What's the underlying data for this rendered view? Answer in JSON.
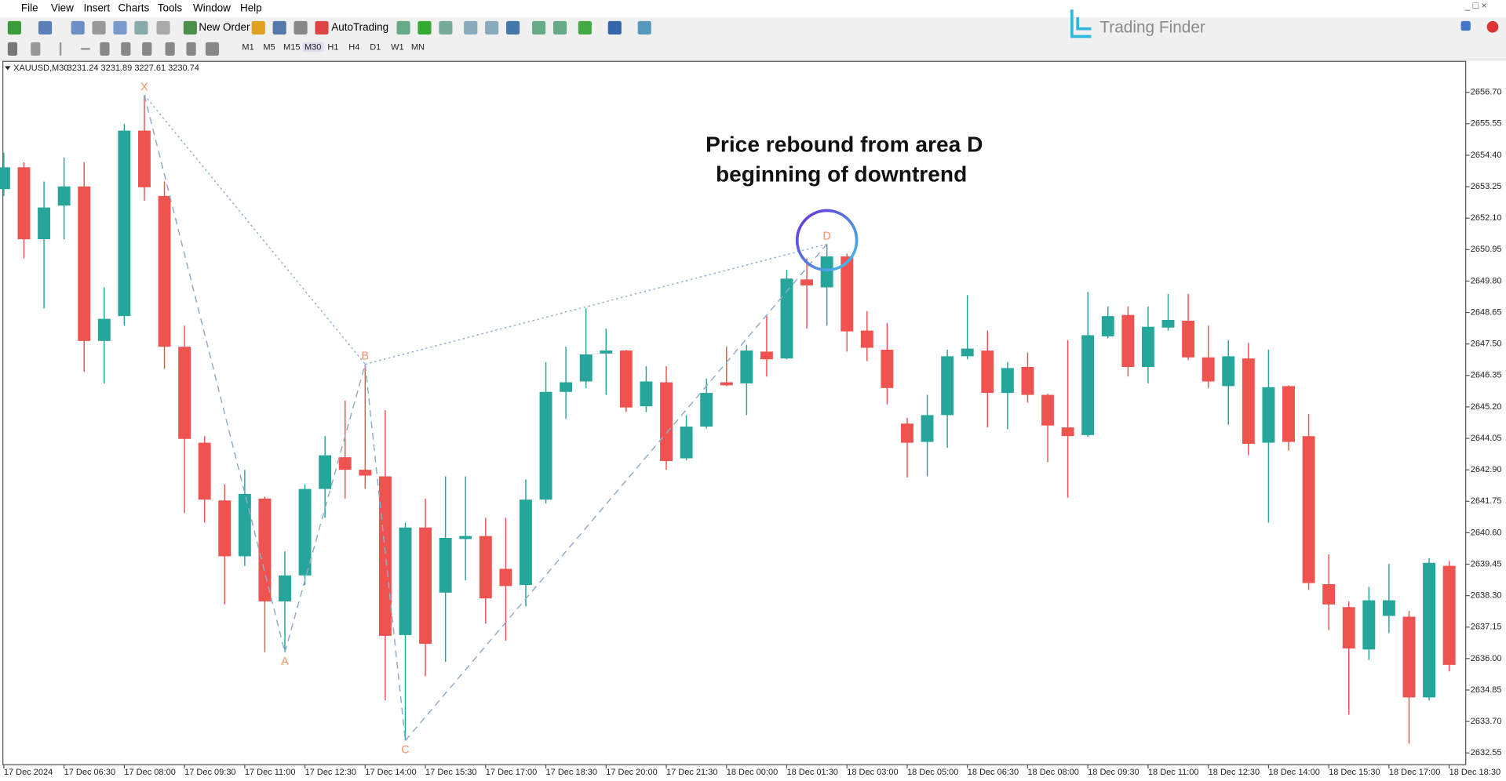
{
  "menu": [
    "File",
    "View",
    "Insert",
    "Charts",
    "Tools",
    "Window",
    "Help"
  ],
  "toolbar": {
    "new_order": "New Order",
    "autotrading": "AutoTrading",
    "timeframes": [
      "M1",
      "M5",
      "M15",
      "M30",
      "H1",
      "H4",
      "D1",
      "W1",
      "MN"
    ]
  },
  "logo": "Trading Finder",
  "chart_data": {
    "type": "candlestick",
    "symbol": "XAUUSD,M30",
    "header_prices": "3231.24 3231.89 3227.61 3230.74",
    "annotation": [
      "Price rebound from area D",
      "beginning of downtrend"
    ],
    "up_color": "#26a69a",
    "down_color": "#ef5350",
    "categories": [
      "17 Dec 2024",
      null,
      null,
      "17 Dec 06:30",
      null,
      null,
      "17 Dec 08:00",
      null,
      null,
      "17 Dec 09:30",
      null,
      null,
      "17 Dec 11:00",
      null,
      null,
      "17 Dec 12:30",
      null,
      null,
      "17 Dec 14:00",
      null,
      null,
      "17 Dec 15:30",
      null,
      null,
      "17 Dec 17:00",
      null,
      null,
      "17 Dec 18:30",
      null,
      null,
      "17 Dec 20:00",
      null,
      null,
      "17 Dec 21:30",
      null,
      null,
      "18 Dec 00:00",
      null,
      null,
      "18 Dec 01:30",
      null,
      null,
      "18 Dec 03:00",
      null,
      null,
      "18 Dec 05:00",
      null,
      null,
      "18 Dec 06:30",
      null,
      null,
      "18 Dec 08:00",
      null,
      null,
      "18 Dec 09:30",
      null,
      null,
      "18 Dec 11:00",
      null,
      null,
      "18 Dec 12:30",
      null,
      null,
      "18 Dec 14:00",
      null,
      null,
      "18 Dec 15:30",
      null,
      null,
      "18 Dec 17:00",
      null,
      null,
      "18 Dec 18:30"
    ],
    "open": [
      2653.16,
      2653.96,
      2651.33,
      2652.56,
      2653.26,
      2647.61,
      2648.52,
      2655.3,
      2652.91,
      2647.4,
      2643.89,
      2641.78,
      2639.74,
      2641.85,
      2638.09,
      2639.04,
      2642.2,
      2643.36,
      2642.9,
      2642.66,
      2636.86,
      2640.79,
      2638.41,
      2640.37,
      2640.48,
      2639.28,
      2638.69,
      2641.81,
      2645.75,
      2646.13,
      2647.15,
      2647.26,
      2645.22,
      2646.1,
      2643.32,
      2644.48,
      2646.1,
      2646.06,
      2647.22,
      2646.97,
      2649.86,
      2649.57,
      2650.7,
      2647.99,
      2647.29,
      2644.59,
      2643.92,
      2644.9,
      2647.05,
      2647.26,
      2645.71,
      2646.66,
      2645.64,
      2644.45,
      2644.17,
      2647.78,
      2648.56,
      2646.66,
      2648.1,
      2648.35,
      2647.01,
      2645.96,
      2646.97,
      2643.89,
      2645.96,
      2644.13,
      2638.72,
      2637.88,
      2636.33,
      2637.56,
      2637.53,
      2634.58,
      2639.39
    ],
    "high": [
      2654.49,
      2654.14,
      2653.44,
      2654.32,
      2654.14,
      2649.57,
      2655.54,
      2656.6,
      2653.44,
      2648.17,
      2644.13,
      2642.37,
      2642.9,
      2641.92,
      2639.92,
      2642.37,
      2644.13,
      2645.43,
      2646.76,
      2645.08,
      2640.97,
      2641.85,
      2642.66,
      2642.66,
      2641.15,
      2641.15,
      2642.55,
      2646.84,
      2647.4,
      2648.8,
      2648.06,
      2647.29,
      2646.69,
      2646.69,
      2644.9,
      2646.24,
      2647.4,
      2647.47,
      2648.52,
      2650.21,
      2650.63,
      2651.15,
      2650.8,
      2648.7,
      2648.27,
      2644.8,
      2645.64,
      2647.29,
      2649.29,
      2647.99,
      2646.84,
      2647.19,
      2645.68,
      2647.64,
      2649.4,
      2648.87,
      2648.87,
      2648.87,
      2649.33,
      2649.33,
      2648.17,
      2647.64,
      2647.54,
      2647.29,
      2645.99,
      2644.94,
      2639.81,
      2638.09,
      2638.62,
      2639.46,
      2637.74,
      2639.67,
      2639.57
    ],
    "low": [
      2652.91,
      2650.63,
      2648.8,
      2651.33,
      2646.48,
      2646.06,
      2648.17,
      2652.74,
      2646.59,
      2641.32,
      2640.97,
      2637.98,
      2639.39,
      2636.23,
      2636.23,
      2638.69,
      2641.15,
      2641.85,
      2642.2,
      2634.47,
      2633.0,
      2635.35,
      2635.88,
      2638.86,
      2637.28,
      2636.65,
      2637.91,
      2641.67,
      2644.76,
      2645.89,
      2645.64,
      2645.01,
      2645.01,
      2642.9,
      2643.25,
      2644.41,
      2645.96,
      2644.9,
      2646.31,
      2646.94,
      2648.06,
      2648.17,
      2647.22,
      2646.87,
      2645.29,
      2642.62,
      2642.66,
      2643.71,
      2646.94,
      2644.45,
      2644.38,
      2645.36,
      2643.18,
      2641.88,
      2644.1,
      2647.71,
      2646.31,
      2646.06,
      2647.99,
      2646.91,
      2645.89,
      2644.55,
      2643.43,
      2640.97,
      2643.6,
      2638.51,
      2637.04,
      2633.95,
      2635.95,
      2636.93,
      2632.89,
      2634.47,
      2635.53
    ],
    "close": [
      2653.96,
      2651.33,
      2652.49,
      2653.26,
      2647.61,
      2648.42,
      2655.3,
      2653.23,
      2647.4,
      2644.03,
      2641.81,
      2639.74,
      2642.02,
      2638.09,
      2639.04,
      2642.2,
      2643.43,
      2642.9,
      2642.69,
      2636.83,
      2640.79,
      2636.54,
      2640.41,
      2640.48,
      2638.2,
      2638.65,
      2641.81,
      2645.75,
      2646.1,
      2647.12,
      2647.26,
      2645.18,
      2646.13,
      2643.22,
      2644.48,
      2645.71,
      2645.99,
      2647.26,
      2646.94,
      2649.89,
      2649.64,
      2650.7,
      2647.96,
      2647.36,
      2645.89,
      2643.89,
      2644.9,
      2647.05,
      2647.33,
      2645.71,
      2646.62,
      2645.64,
      2644.52,
      2644.13,
      2647.82,
      2648.52,
      2646.66,
      2648.13,
      2648.38,
      2647.01,
      2646.13,
      2647.05,
      2643.85,
      2645.92,
      2643.92,
      2638.76,
      2637.98,
      2636.37,
      2638.13,
      2638.13,
      2634.58,
      2639.5,
      2635.77
    ],
    "ylim": [
      2632.12,
      2657.83
    ],
    "yticks": [
      {
        "value": 2656.7,
        "label": "2656.70"
      },
      2655.55,
      {
        "value": 2654.4,
        "label": "2654.40"
      },
      2653.25,
      {
        "value": 2652.1,
        "label": "2652.10"
      },
      2650.95,
      {
        "value": 2649.8,
        "label": "2649.80"
      },
      2648.65,
      {
        "value": 2647.5,
        "label": "2647.50"
      },
      2646.35,
      {
        "value": 2645.2,
        "label": "2645.20"
      },
      2644.05,
      {
        "value": 2642.9,
        "label": "2642.90"
      },
      2641.75,
      {
        "value": 2640.6,
        "label": "2640.60"
      },
      2639.45,
      {
        "value": 2638.3,
        "label": "2638.30"
      },
      2637.15,
      {
        "value": 2636.0,
        "label": "2636.00"
      },
      2634.85,
      {
        "value": 2633.7,
        "label": "2633.70"
      },
      2632.55
    ],
    "pattern": {
      "line_color": "#8eaccb",
      "label_color": "#f2946a",
      "points": [
        {
          "label": "X",
          "index": 7,
          "price": 2656.6
        },
        {
          "label": "A",
          "index": 14,
          "price": 2636.23
        },
        {
          "label": "B",
          "index": 18,
          "price": 2646.76
        },
        {
          "label": "C",
          "index": 20,
          "price": 2633.0
        },
        {
          "label": "D",
          "index": 41,
          "price": 2651.15
        }
      ]
    }
  }
}
